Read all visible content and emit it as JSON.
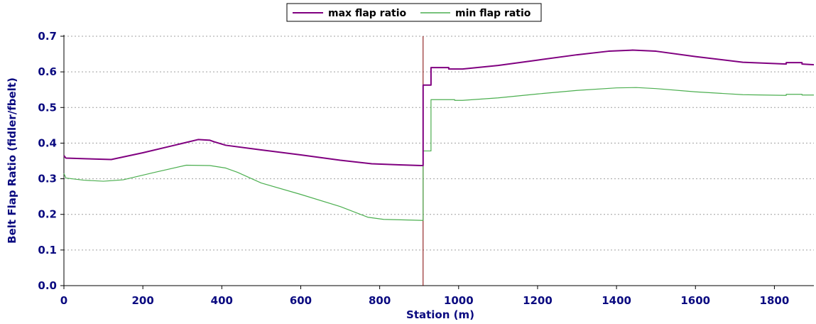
{
  "chart_data": {
    "type": "line",
    "xlabel": "Station (m)",
    "ylabel": "Belt Flap Ratio (fidler/fbelt)",
    "xlim": [
      0,
      1900
    ],
    "ylim": [
      0,
      0.7
    ],
    "x_ticks": [
      0,
      200,
      400,
      600,
      800,
      1000,
      1200,
      1400,
      1600,
      1800
    ],
    "y_ticks": [
      0.0,
      0.1,
      0.2,
      0.3,
      0.4,
      0.5,
      0.6,
      0.7
    ],
    "x_tick_labels": [
      "0",
      "200",
      "400",
      "600",
      "800",
      "1000",
      "1200",
      "1400",
      "1600",
      "1800"
    ],
    "y_tick_labels": [
      "0.0",
      "0.1",
      "0.2",
      "0.3",
      "0.4",
      "0.5",
      "0.6",
      "0.7"
    ],
    "grid": "horizontal dotted",
    "legend_placement": "top-center",
    "vertical_marker_x": 910,
    "colors": {
      "max": "#800080",
      "min": "#4caf50",
      "marker": "#800000",
      "axis_text": "#0a0a80",
      "grid": "#a0a0a0"
    },
    "series": [
      {
        "name": "max flap ratio",
        "color": "#800080",
        "points": [
          [
            0,
            0.365
          ],
          [
            5,
            0.358
          ],
          [
            60,
            0.356
          ],
          [
            120,
            0.354
          ],
          [
            200,
            0.373
          ],
          [
            280,
            0.394
          ],
          [
            340,
            0.41
          ],
          [
            370,
            0.408
          ],
          [
            380,
            0.404
          ],
          [
            410,
            0.394
          ],
          [
            500,
            0.381
          ],
          [
            600,
            0.367
          ],
          [
            700,
            0.352
          ],
          [
            780,
            0.342
          ],
          [
            850,
            0.339
          ],
          [
            905,
            0.337
          ],
          [
            910,
            0.337
          ],
          [
            910,
            0.563
          ],
          [
            930,
            0.563
          ],
          [
            930,
            0.612
          ],
          [
            975,
            0.612
          ],
          [
            975,
            0.608
          ],
          [
            1010,
            0.608
          ],
          [
            1100,
            0.618
          ],
          [
            1200,
            0.633
          ],
          [
            1300,
            0.648
          ],
          [
            1380,
            0.658
          ],
          [
            1440,
            0.661
          ],
          [
            1500,
            0.658
          ],
          [
            1600,
            0.643
          ],
          [
            1720,
            0.627
          ],
          [
            1830,
            0.622
          ],
          [
            1830,
            0.626
          ],
          [
            1870,
            0.626
          ],
          [
            1870,
            0.622
          ],
          [
            1900,
            0.62
          ]
        ]
      },
      {
        "name": "min flap ratio",
        "color": "#4caf50",
        "points": [
          [
            0,
            0.315
          ],
          [
            5,
            0.302
          ],
          [
            50,
            0.296
          ],
          [
            100,
            0.293
          ],
          [
            150,
            0.297
          ],
          [
            230,
            0.318
          ],
          [
            310,
            0.338
          ],
          [
            370,
            0.337
          ],
          [
            410,
            0.33
          ],
          [
            440,
            0.318
          ],
          [
            500,
            0.288
          ],
          [
            600,
            0.256
          ],
          [
            700,
            0.222
          ],
          [
            770,
            0.192
          ],
          [
            810,
            0.186
          ],
          [
            880,
            0.184
          ],
          [
            910,
            0.183
          ],
          [
            910,
            0.378
          ],
          [
            930,
            0.378
          ],
          [
            930,
            0.522
          ],
          [
            990,
            0.522
          ],
          [
            990,
            0.52
          ],
          [
            1010,
            0.52
          ],
          [
            1100,
            0.527
          ],
          [
            1200,
            0.538
          ],
          [
            1300,
            0.548
          ],
          [
            1400,
            0.555
          ],
          [
            1450,
            0.556
          ],
          [
            1500,
            0.553
          ],
          [
            1600,
            0.544
          ],
          [
            1720,
            0.536
          ],
          [
            1830,
            0.534
          ],
          [
            1830,
            0.537
          ],
          [
            1870,
            0.537
          ],
          [
            1870,
            0.535
          ],
          [
            1900,
            0.535
          ]
        ]
      }
    ]
  }
}
